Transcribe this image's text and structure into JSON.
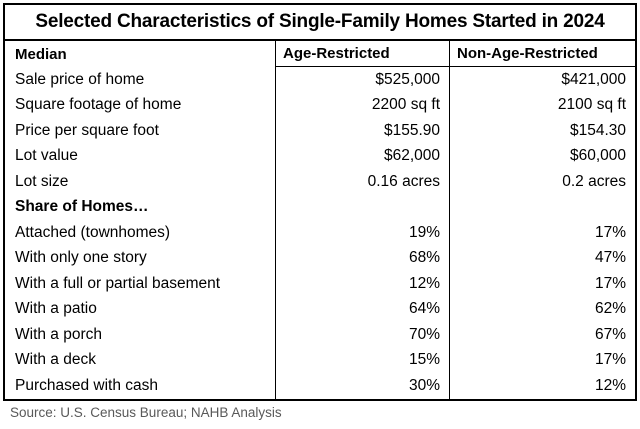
{
  "chart_data": {
    "type": "table",
    "title": "Selected Characteristics of Single-Family Homes Started in 2024",
    "columns": [
      "Median",
      "Age-Restricted",
      "Non-Age-Restricted"
    ],
    "rows": [
      {
        "label": "Sale price of home",
        "age_restricted": "$525,000",
        "non_age_restricted": "$421,000",
        "section_header": false
      },
      {
        "label": "Square footage of home",
        "age_restricted": "2200 sq ft",
        "non_age_restricted": "2100 sq ft",
        "section_header": false
      },
      {
        "label": "Price per square foot",
        "age_restricted": "$155.90",
        "non_age_restricted": "$154.30",
        "section_header": false
      },
      {
        "label": "Lot value",
        "age_restricted": "$62,000",
        "non_age_restricted": "$60,000",
        "section_header": false
      },
      {
        "label": "Lot size",
        "age_restricted": "0.16 acres",
        "non_age_restricted": "0.2 acres",
        "section_header": false
      },
      {
        "label": "Share of Homes…",
        "age_restricted": "",
        "non_age_restricted": "",
        "section_header": true
      },
      {
        "label": "Attached (townhomes)",
        "age_restricted": "19%",
        "non_age_restricted": "17%",
        "section_header": false
      },
      {
        "label": "With only one story",
        "age_restricted": "68%",
        "non_age_restricted": "47%",
        "section_header": false
      },
      {
        "label": "With a full or partial basement",
        "age_restricted": "12%",
        "non_age_restricted": "17%",
        "section_header": false
      },
      {
        "label": "With a patio",
        "age_restricted": "64%",
        "non_age_restricted": "62%",
        "section_header": false
      },
      {
        "label": "With a porch",
        "age_restricted": "70%",
        "non_age_restricted": "67%",
        "section_header": false
      },
      {
        "label": "With a deck",
        "age_restricted": "15%",
        "non_age_restricted": "17%",
        "section_header": false
      },
      {
        "label": "Purchased with cash",
        "age_restricted": "30%",
        "non_age_restricted": "12%",
        "section_header": false
      }
    ],
    "source": "Source: U.S. Census Bureau; NAHB Analysis",
    "layout": {
      "gridlines": "vertical column dividers only; header underline only beneath value columns",
      "value_alignment": "right",
      "label_alignment": "left"
    }
  },
  "colors": {
    "text": "#000000",
    "border": "#000000",
    "source_text": "#595959",
    "background": "#ffffff"
  }
}
